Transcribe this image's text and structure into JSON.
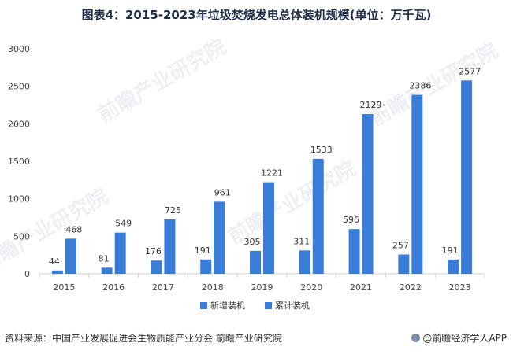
{
  "header": {
    "title": "图表4：2015-2023年垃圾焚烧发电总体装机规模(单位：万千瓦)"
  },
  "footer": {
    "source": "资料来源：中国产业发展促进会生物质能产业分会 前瞻产业研究院",
    "brand": "@前瞻经济学人APP"
  },
  "watermark": "前瞻产业研究院",
  "colors": {
    "bar_new": "#3a7dd8",
    "bar_cum": "#3a7dd8",
    "axis": "#cfcfcf"
  },
  "chart_data": {
    "type": "bar",
    "title": "图表4：2015-2023年垃圾焚烧发电总体装机规模(单位：万千瓦)",
    "categories": [
      "2015",
      "2016",
      "2017",
      "2018",
      "2019",
      "2020",
      "2021",
      "2022",
      "2023"
    ],
    "series": [
      {
        "name": "新增装机",
        "values": [
          44,
          81,
          176,
          191,
          305,
          311,
          596,
          257,
          191
        ]
      },
      {
        "name": "累计装机",
        "values": [
          468,
          549,
          725,
          961,
          1221,
          1533,
          2129,
          2386,
          2577
        ]
      }
    ],
    "ylim": [
      0,
      3000
    ],
    "yticks": [
      0,
      500,
      1000,
      1500,
      2000,
      2500,
      3000
    ],
    "xlabel": "",
    "ylabel": "",
    "grid": false,
    "legend": "bottom",
    "data_labels": true
  }
}
